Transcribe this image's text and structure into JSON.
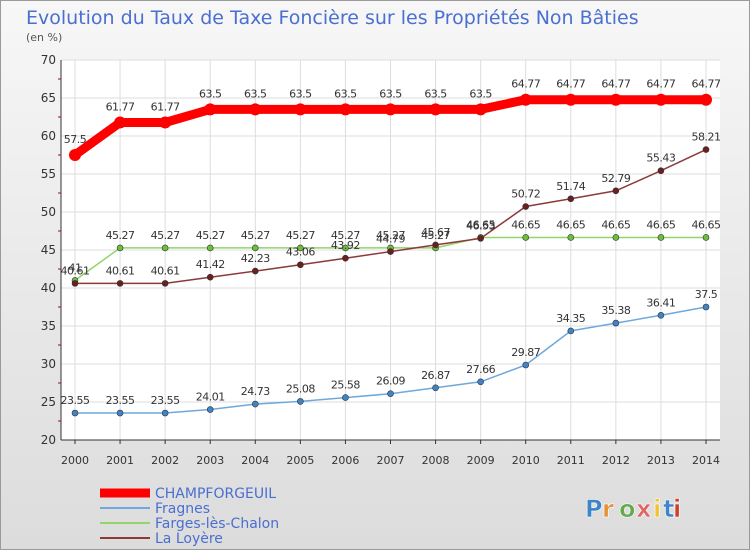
{
  "chart_data": {
    "type": "line",
    "title": "Evolution du Taux de Taxe Foncière sur les Propriétés Non Bâties",
    "ylabel": "(en %)",
    "xlabel": "",
    "x": [
      "2000",
      "2001",
      "2002",
      "2003",
      "2004",
      "2005",
      "2006",
      "2007",
      "2008",
      "2009",
      "2010",
      "2011",
      "2012",
      "2013",
      "2014"
    ],
    "ylim": [
      20,
      70
    ],
    "yticks": [
      20,
      25,
      30,
      35,
      40,
      45,
      50,
      55,
      60,
      65,
      70
    ],
    "grid": true,
    "legend_position": "bottom-left",
    "series": [
      {
        "name": "CHAMPFORGEUIL",
        "color": "#ff0000",
        "label_color": "#4a6fd0",
        "values": [
          57.5,
          61.77,
          61.77,
          63.5,
          63.5,
          63.5,
          63.5,
          63.5,
          63.5,
          63.5,
          64.77,
          64.77,
          64.77,
          64.77,
          64.77
        ],
        "labels": [
          "57.5",
          "61.77",
          "61.77",
          "63.5",
          "63.5",
          "63.5",
          "63.5",
          "63.5",
          "63.5",
          "63.5",
          "64.77",
          "64.77",
          "64.77",
          "64.77",
          "64.77"
        ]
      },
      {
        "name": "Fragnes",
        "color": "#6fa8dc",
        "marker_color": "#3d85c6",
        "label_color": "#4a6fd0",
        "values": [
          23.55,
          23.55,
          23.55,
          24.01,
          24.73,
          25.08,
          25.58,
          26.09,
          26.87,
          27.66,
          29.87,
          34.35,
          35.38,
          36.41,
          37.5
        ],
        "labels": [
          "23.55",
          "23.55",
          "23.55",
          "24.01",
          "24.73",
          "25.08",
          "25.58",
          "26.09",
          "26.87",
          "27.66",
          "29.87",
          "34.35",
          "35.38",
          "36.41",
          "37.5"
        ]
      },
      {
        "name": "Farges-lès-Chalon",
        "color": "#93d46b",
        "marker_color": "#6bbf3b",
        "label_color": "#4a6fd0",
        "values": [
          41,
          45.27,
          45.27,
          45.27,
          45.27,
          45.27,
          45.27,
          45.27,
          45.27,
          46.65,
          46.65,
          46.65,
          46.65,
          46.65,
          46.65
        ],
        "labels": [
          "41",
          "45.27",
          "45.27",
          "45.27",
          "45.27",
          "45.27",
          "45.27",
          "45.27",
          "45.27",
          "46.65",
          "46.65",
          "46.65",
          "46.65",
          "46.65",
          "46.65"
        ]
      },
      {
        "name": "La Loyère",
        "color": "#8b3a3a",
        "marker_color": "#6b1f1f",
        "label_color": "#4a6fd0",
        "values": [
          40.61,
          40.61,
          40.61,
          41.42,
          42.23,
          43.06,
          43.92,
          44.79,
          45.67,
          46.53,
          50.72,
          51.74,
          52.79,
          55.43,
          58.21
        ],
        "labels": [
          "40.61",
          "40.61",
          "40.61",
          "41.42",
          "42.23",
          "43.06",
          "43.92",
          "44.79",
          "45.67",
          "46.53",
          "50.72",
          "51.74",
          "52.79",
          "55.43",
          "58.21"
        ]
      }
    ]
  },
  "logo": {
    "text": "Proxiti"
  },
  "colors": {
    "title": "#4a6fd0",
    "axis": "#333333",
    "grid": "#dddddd",
    "plot_bg": "#ffffff",
    "tick_mark": "#cc0000"
  }
}
